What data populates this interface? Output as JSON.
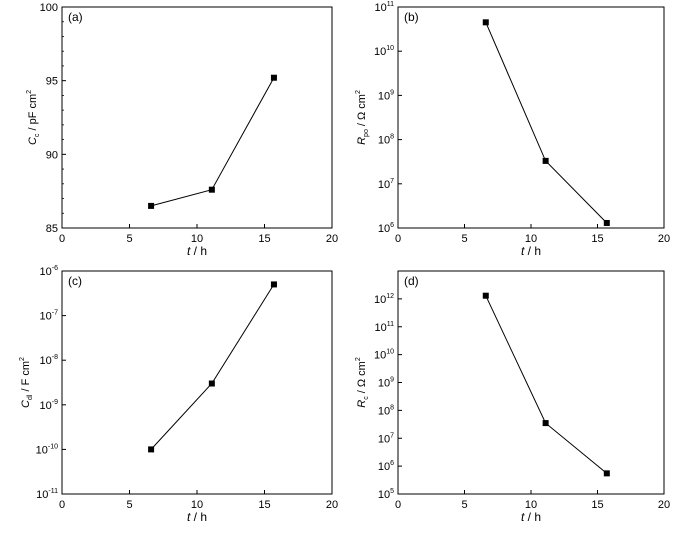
{
  "chart_data": [
    {
      "type": "line",
      "panel_label": "(a)",
      "x": [
        6.6,
        11.1,
        15.7
      ],
      "y": [
        86.5,
        87.6,
        95.2
      ],
      "xlabel_sym": "t",
      "xlabel_unit": " / h",
      "ylabel_sym": "C",
      "ylabel_sub": "c",
      "ylabel_unit": " / pF cm",
      "ylabel_sup": "2",
      "yscale": "linear",
      "xlim": [
        0,
        20
      ],
      "ylim": [
        85,
        100
      ],
      "xticks": [
        {
          "v": 0,
          "l": "0"
        },
        {
          "v": 5,
          "l": "5"
        },
        {
          "v": 10,
          "l": "10"
        },
        {
          "v": 15,
          "l": "15"
        },
        {
          "v": 20,
          "l": "20"
        }
      ],
      "yticks": [
        {
          "v": 85,
          "l": "85"
        },
        {
          "v": 90,
          "l": "90"
        },
        {
          "v": 95,
          "l": "95"
        },
        {
          "v": 100,
          "l": "100"
        }
      ],
      "marker": "square",
      "color": "#000000",
      "grid": false
    },
    {
      "type": "line",
      "panel_label": "(b)",
      "x": [
        6.6,
        11.1,
        15.7
      ],
      "y": [
        45000000000,
        33000000,
        1300000
      ],
      "xlabel_sym": "t",
      "xlabel_unit": " / h",
      "ylabel_sym": "R",
      "ylabel_sub": "po",
      "ylabel_unit": " / Ω cm",
      "ylabel_sup": "2",
      "yscale": "log",
      "xlim": [
        0,
        20
      ],
      "ylim": [
        1000000,
        100000000000
      ],
      "xticks": [
        {
          "v": 0,
          "l": "0"
        },
        {
          "v": 5,
          "l": "5"
        },
        {
          "v": 10,
          "l": "10"
        },
        {
          "v": 15,
          "l": "15"
        },
        {
          "v": 20,
          "l": "20"
        }
      ],
      "yticks": [
        {
          "v": 1000000,
          "b": "10",
          "e": "6"
        },
        {
          "v": 10000000,
          "b": "10",
          "e": "7"
        },
        {
          "v": 100000000,
          "b": "10",
          "e": "8"
        },
        {
          "v": 1000000000,
          "b": "10",
          "e": "9"
        },
        {
          "v": 10000000000,
          "b": "10",
          "e": "10"
        },
        {
          "v": 100000000000,
          "b": "10",
          "e": "11"
        }
      ],
      "marker": "square",
      "color": "#000000",
      "grid": false
    },
    {
      "type": "line",
      "panel_label": "(c)",
      "x": [
        6.6,
        11.1,
        15.7
      ],
      "y": [
        1e-10,
        3e-09,
        5e-07
      ],
      "xlabel_sym": "t",
      "xlabel_unit": " / h",
      "ylabel_sym": "C",
      "ylabel_sub": "dl",
      "ylabel_unit": " / F cm",
      "ylabel_sup": "2",
      "yscale": "log",
      "xlim": [
        0,
        20
      ],
      "ylim": [
        1e-11,
        1e-06
      ],
      "xticks": [
        {
          "v": 0,
          "l": "0"
        },
        {
          "v": 5,
          "l": "5"
        },
        {
          "v": 10,
          "l": "10"
        },
        {
          "v": 15,
          "l": "15"
        },
        {
          "v": 20,
          "l": "20"
        }
      ],
      "yticks": [
        {
          "v": 1e-11,
          "b": "10",
          "e": "-11"
        },
        {
          "v": 1e-10,
          "b": "10",
          "e": "-10"
        },
        {
          "v": 1e-09,
          "b": "10",
          "e": "-9"
        },
        {
          "v": 1e-08,
          "b": "10",
          "e": "-8"
        },
        {
          "v": 1e-07,
          "b": "10",
          "e": "-7"
        },
        {
          "v": 1e-06,
          "b": "10",
          "e": "-6"
        }
      ],
      "marker": "square",
      "color": "#000000",
      "grid": false
    },
    {
      "type": "line",
      "panel_label": "(d)",
      "x": [
        6.6,
        11.1,
        15.7
      ],
      "y": [
        1300000000000,
        35000000,
        550000
      ],
      "xlabel_sym": "t",
      "xlabel_unit": " / h",
      "ylabel_sym": "R",
      "ylabel_sub": "c",
      "ylabel_unit": " / Ω cm",
      "ylabel_sup": "2",
      "yscale": "log",
      "xlim": [
        0,
        20
      ],
      "ylim": [
        100000,
        10000000000000
      ],
      "xticks": [
        {
          "v": 0,
          "l": "0"
        },
        {
          "v": 5,
          "l": "5"
        },
        {
          "v": 10,
          "l": "10"
        },
        {
          "v": 15,
          "l": "15"
        },
        {
          "v": 20,
          "l": "20"
        }
      ],
      "yticks": [
        {
          "v": 100000,
          "b": "10",
          "e": "5"
        },
        {
          "v": 1000000,
          "b": "10",
          "e": "6"
        },
        {
          "v": 10000000,
          "b": "10",
          "e": "7"
        },
        {
          "v": 100000000,
          "b": "10",
          "e": "8"
        },
        {
          "v": 1000000000,
          "b": "10",
          "e": "9"
        },
        {
          "v": 10000000000,
          "b": "10",
          "e": "10"
        },
        {
          "v": 100000000000,
          "b": "10",
          "e": "11"
        },
        {
          "v": 1000000000000,
          "b": "10",
          "e": "12"
        }
      ],
      "marker": "square",
      "color": "#000000",
      "grid": false
    }
  ]
}
